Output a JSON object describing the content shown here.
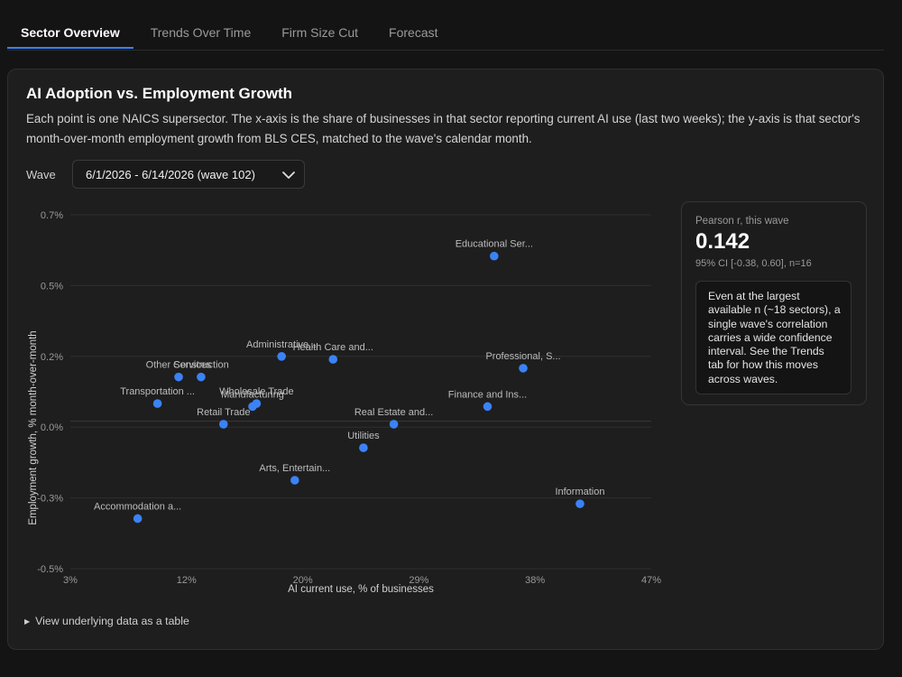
{
  "tabs": [
    {
      "label": "Sector Overview",
      "active": true
    },
    {
      "label": "Trends Over Time",
      "active": false
    },
    {
      "label": "Firm Size Cut",
      "active": false
    },
    {
      "label": "Forecast",
      "active": false
    }
  ],
  "card": {
    "title": "AI Adoption vs. Employment Growth",
    "description": "Each point is one NAICS supersector. The x-axis is the share of businesses in that sector reporting current AI use (last two weeks); the y-axis is that sector's month-over-month employment growth from BLS CES, matched to the wave's calendar month."
  },
  "wave": {
    "label": "Wave",
    "selected": "6/1/2026 - 6/14/2026 (wave 102)"
  },
  "stats": {
    "label": "Pearson r, this wave",
    "value": "0.142",
    "ci": "95% CI [-0.38, 0.60], n=16",
    "note": "Even at the largest available n (~18 sectors), a single wave's correlation carries a wide confidence interval. See the Trends tab for how this moves across waves."
  },
  "table_toggle": {
    "label": "View underlying data as a table"
  },
  "colors": {
    "point": "#3b82f6",
    "grid": "#2e2e2e",
    "zero_line": "#3a3a3a",
    "accent": "#3b82f6"
  },
  "chart_data": {
    "type": "scatter",
    "xlabel": "AI current use, % of businesses",
    "ylabel": "Employment growth, % month-over-month",
    "xlim": [
      3,
      47
    ],
    "ylim": [
      -0.5,
      0.7
    ],
    "x_ticks": [
      "3%",
      "12%",
      "20%",
      "29%",
      "38%",
      "47%"
    ],
    "x_tick_values": [
      3,
      11.8,
      20.6,
      29.4,
      38.2,
      47
    ],
    "y_ticks": [
      "0.7%",
      "0.5%",
      "0.2%",
      "0.0%",
      "-0.3%",
      "-0.5%"
    ],
    "y_tick_values": [
      0.7,
      0.46,
      0.22,
      -0.02,
      -0.26,
      -0.5
    ],
    "grid": true,
    "points": [
      {
        "label": "Educational Ser...",
        "x": 35.1,
        "y": 0.56
      },
      {
        "label": "Administrative...",
        "x": 19.0,
        "y": 0.22
      },
      {
        "label": "Health Care and...",
        "x": 22.9,
        "y": 0.21
      },
      {
        "label": "Professional, S...",
        "x": 37.3,
        "y": 0.18
      },
      {
        "label": "Other Services",
        "x": 11.2,
        "y": 0.15
      },
      {
        "label": "Construction",
        "x": 12.9,
        "y": 0.15
      },
      {
        "label": "Transportation ...",
        "x": 9.6,
        "y": 0.06
      },
      {
        "label": "Wholesale Trade",
        "x": 17.1,
        "y": 0.06
      },
      {
        "label": "Manufacturing",
        "x": 16.8,
        "y": 0.05
      },
      {
        "label": "Finance and Ins...",
        "x": 34.6,
        "y": 0.05
      },
      {
        "label": "Retail Trade",
        "x": 14.6,
        "y": -0.01
      },
      {
        "label": "Real Estate and...",
        "x": 27.5,
        "y": -0.01
      },
      {
        "label": "Utilities",
        "x": 25.2,
        "y": -0.09
      },
      {
        "label": "Arts, Entertain...",
        "x": 20.0,
        "y": -0.2
      },
      {
        "label": "Accommodation a...",
        "x": 8.1,
        "y": -0.33
      },
      {
        "label": "Information",
        "x": 41.6,
        "y": -0.28
      }
    ]
  }
}
